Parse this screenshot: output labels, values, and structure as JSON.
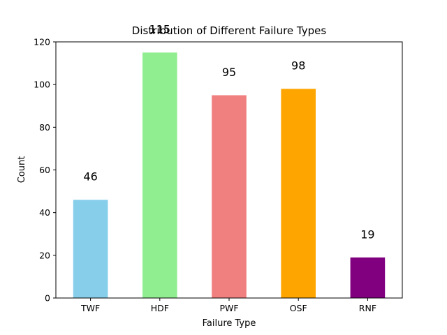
{
  "chart_data": {
    "type": "bar",
    "title": "Distribution of Different Failure Types",
    "xlabel": "Failure Type",
    "ylabel": "Count",
    "categories": [
      "TWF",
      "HDF",
      "PWF",
      "OSF",
      "RNF"
    ],
    "values": [
      46,
      115,
      95,
      98,
      19
    ],
    "data_labels": [
      "46",
      "115",
      "95",
      "98",
      "19"
    ],
    "colors": [
      "#87ceeb",
      "#90ee90",
      "#f08080",
      "#ffa500",
      "#800080"
    ],
    "ylim": [
      0,
      120
    ],
    "yticks": [
      0,
      20,
      40,
      60,
      80,
      100,
      120
    ],
    "grid": false,
    "legend": "none"
  }
}
